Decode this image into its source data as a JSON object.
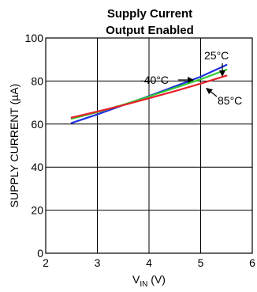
{
  "chart_data": {
    "type": "line",
    "title": "Supply Current",
    "subtitle": "Output Enabled",
    "xlabel_main": "V",
    "xlabel_sub": "IN",
    "xlabel_unit": " (V)",
    "ylabel": "SUPPLY CURRENT (µA)",
    "xlim": [
      2,
      6
    ],
    "ylim": [
      0,
      100
    ],
    "x_ticks": [
      2,
      3,
      4,
      5,
      6
    ],
    "x_tick_labels": [
      "2",
      "3",
      "4",
      "5",
      "6"
    ],
    "y_ticks": [
      0,
      20,
      40,
      60,
      80,
      100
    ],
    "y_tick_labels": [
      "0",
      "20",
      "40",
      "60",
      "80",
      "100"
    ],
    "grid": true,
    "series": [
      {
        "name": "-40°C",
        "color": "#1f2fe0",
        "x": [
          2.5,
          3.0,
          3.5,
          4.0,
          4.5,
          5.0,
          5.5
        ],
        "y": [
          60.5,
          64.5,
          68.8,
          73.0,
          77.5,
          82.0,
          87.5
        ]
      },
      {
        "name": "25°C",
        "color": "#33cc33",
        "x": [
          2.5,
          3.0,
          3.5,
          4.0,
          4.5,
          5.0,
          5.5
        ],
        "y": [
          62.5,
          65.5,
          69.0,
          72.8,
          76.8,
          80.8,
          85.3
        ]
      },
      {
        "name": "85°C",
        "color": "#e8202a",
        "x": [
          2.5,
          3.0,
          3.5,
          4.0,
          4.5,
          5.0,
          5.5
        ],
        "y": [
          63.0,
          65.8,
          68.8,
          72.0,
          75.3,
          78.8,
          82.5
        ]
      }
    ],
    "annotations": [
      {
        "text": "25°C",
        "series": "25°C"
      },
      {
        "text": "-40°C",
        "series": "-40°C"
      },
      {
        "text": "85°C",
        "series": "85°C"
      }
    ]
  }
}
